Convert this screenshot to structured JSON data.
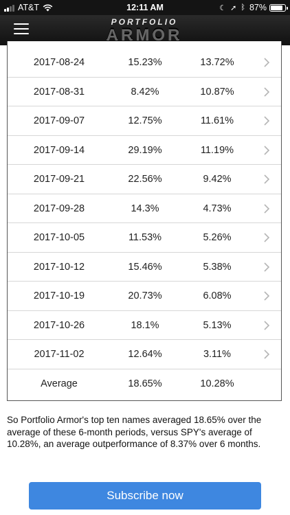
{
  "status_bar": {
    "carrier": "AT&T",
    "time": "12:11 AM",
    "battery": "87%",
    "battery_level": 0.87,
    "icons": [
      "signal-icon",
      "wifi-icon",
      "moon-icon",
      "location-icon",
      "bluetooth-icon",
      "battery-icon"
    ]
  },
  "header": {
    "logo_top": "PORTFOLIO",
    "logo_bottom": "ARMOR",
    "menu_icon": "hamburger-menu-icon"
  },
  "table": {
    "rows": [
      {
        "date": "2017-08-24",
        "top_ten": "15.23%",
        "spy": "13.72%"
      },
      {
        "date": "2017-08-31",
        "top_ten": "8.42%",
        "spy": "10.87%"
      },
      {
        "date": "2017-09-07",
        "top_ten": "12.75%",
        "spy": "11.61%"
      },
      {
        "date": "2017-09-14",
        "top_ten": "29.19%",
        "spy": "11.19%"
      },
      {
        "date": "2017-09-21",
        "top_ten": "22.56%",
        "spy": "9.42%"
      },
      {
        "date": "2017-09-28",
        "top_ten": "14.3%",
        "spy": "4.73%"
      },
      {
        "date": "2017-10-05",
        "top_ten": "11.53%",
        "spy": "5.26%"
      },
      {
        "date": "2017-10-12",
        "top_ten": "15.46%",
        "spy": "5.38%"
      },
      {
        "date": "2017-10-19",
        "top_ten": "20.73%",
        "spy": "6.08%"
      },
      {
        "date": "2017-10-26",
        "top_ten": "18.1%",
        "spy": "5.13%"
      },
      {
        "date": "2017-11-02",
        "top_ten": "12.64%",
        "spy": "3.11%"
      }
    ],
    "average": {
      "label": "Average",
      "top_ten": "18.65%",
      "spy": "10.28%"
    }
  },
  "summary": "So Portfolio Armor's top ten names averaged 18.65% over the average of these  6-month periods, versus SPY's average of 10.28%, an average outperformance of 8.37% over 6 months.",
  "subscribe": {
    "label": "Subscribe now",
    "color": "#3e87e0"
  }
}
